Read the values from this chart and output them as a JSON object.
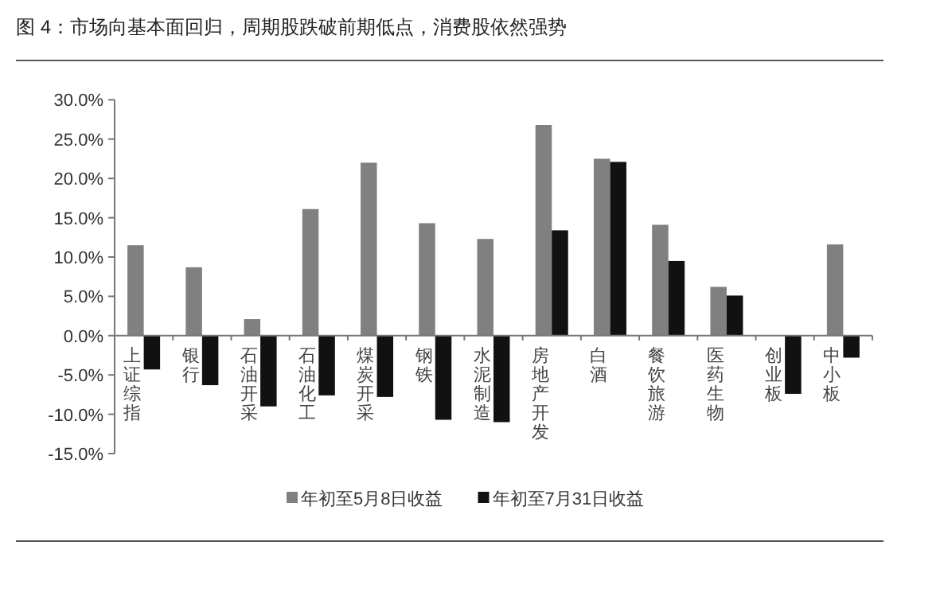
{
  "chart_data": {
    "type": "bar",
    "title": "图 4：市场向基本面回归，周期股跌破前期低点，消费股依然强势",
    "categories": [
      "上证综指",
      "银行",
      "石油开采",
      "石油化工",
      "煤炭开采",
      "钢铁",
      "水泥制造",
      "房地产开发",
      "白酒",
      "餐饮旅游",
      "医药生物",
      "创业板",
      "中小板"
    ],
    "series": [
      {
        "name": "年初至5月8日收益",
        "color": "#808080",
        "values": [
          11.5,
          8.7,
          2.1,
          16.1,
          22.0,
          14.3,
          12.3,
          26.8,
          22.5,
          14.1,
          6.2,
          null,
          11.6
        ]
      },
      {
        "name": "年初至7月31日收益",
        "color": "#111111",
        "values": [
          -4.3,
          -6.3,
          -9.0,
          -7.6,
          -7.8,
          -10.7,
          -11.0,
          13.4,
          22.1,
          9.5,
          5.1,
          -7.4,
          -2.8
        ]
      }
    ],
    "ylim": [
      -15,
      30
    ],
    "yticks": [
      {
        "value": -15,
        "label": "-15.0%"
      },
      {
        "value": -10,
        "label": "-10.0%"
      },
      {
        "value": -5,
        "label": "-5.0%"
      },
      {
        "value": 0,
        "label": "0.0%"
      },
      {
        "value": 5,
        "label": "5.0%"
      },
      {
        "value": 10,
        "label": "10.0%"
      },
      {
        "value": 15,
        "label": "15.0%"
      },
      {
        "value": 20,
        "label": "20.0%"
      },
      {
        "value": 25,
        "label": "25.0%"
      },
      {
        "value": 30,
        "label": "30.0%"
      }
    ],
    "grid": false,
    "legend": "bottom"
  }
}
